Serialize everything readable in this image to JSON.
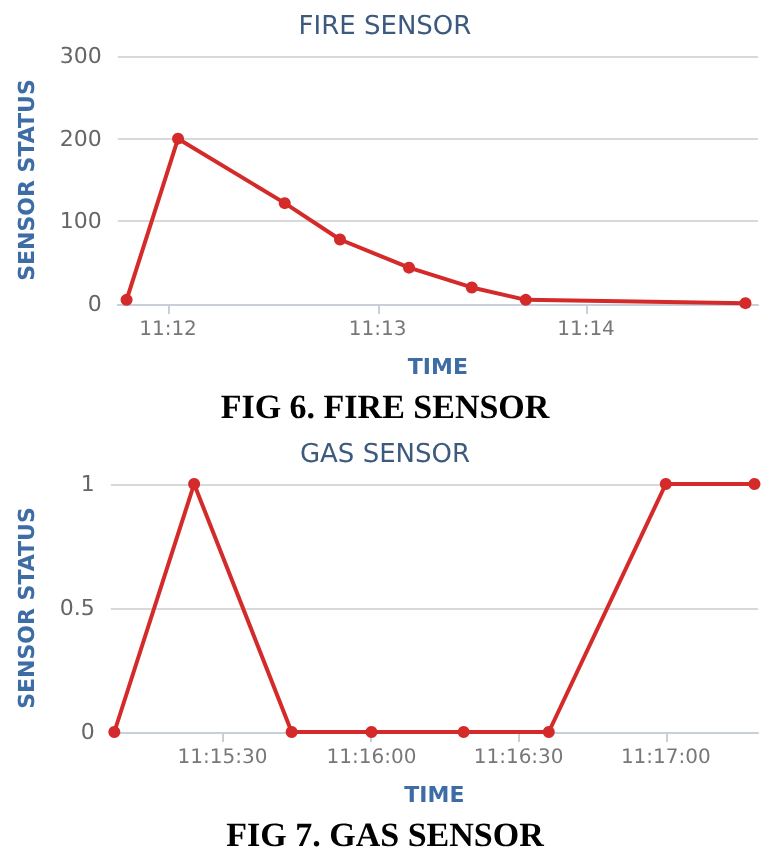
{
  "chart_data": [
    {
      "type": "line",
      "title": "FIRE SENSOR",
      "xlabel": "TIME",
      "ylabel": "SENSOR STATUS",
      "annotations": [
        "FIG 6. FIRE SENSOR"
      ],
      "x": [
        11.1967,
        11.2008,
        11.2093,
        11.2137,
        11.2192,
        11.2242,
        11.2285,
        11.246
      ],
      "series": [
        {
          "color": "#d42a2a",
          "values": [
            5,
            200,
            122,
            78,
            44,
            20,
            5,
            1
          ]
        }
      ],
      "xlim": [
        11.196,
        11.247
      ],
      "xticks": [
        {
          "value": 11.2,
          "label": "11:12"
        },
        {
          "value": 11.2167,
          "label": "11:13"
        },
        {
          "value": 11.2333,
          "label": "11:14"
        }
      ],
      "ylim": [
        0,
        300
      ],
      "yticks": [
        0,
        100,
        200,
        300
      ],
      "grid": "y",
      "marker": "circle",
      "line_style": "solid"
    },
    {
      "type": "line",
      "title": "GAS SENSOR",
      "xlabel": "TIME",
      "ylabel": "SENSOR STATUS",
      "annotations": [
        "FIG 7. GAS SENSOR"
      ],
      "x": [
        11.2522,
        11.2567,
        11.2622,
        11.2667,
        11.2719,
        11.2767,
        11.2833,
        11.2883
      ],
      "series": [
        {
          "color": "#d42a2a",
          "values": [
            0,
            1,
            0,
            0,
            0,
            0,
            1,
            1
          ]
        }
      ],
      "xlim": [
        11.252,
        11.2885
      ],
      "xticks": [
        {
          "value": 11.2583,
          "label": "11:15:30"
        },
        {
          "value": 11.2667,
          "label": "11:16:00"
        },
        {
          "value": 11.275,
          "label": "11:16:30"
        },
        {
          "value": 11.2833,
          "label": "11:17:00"
        }
      ],
      "ylim": [
        0,
        1
      ],
      "yticks": [
        0,
        0.5,
        1
      ],
      "grid": "y",
      "marker": "circle",
      "line_style": "solid"
    }
  ]
}
